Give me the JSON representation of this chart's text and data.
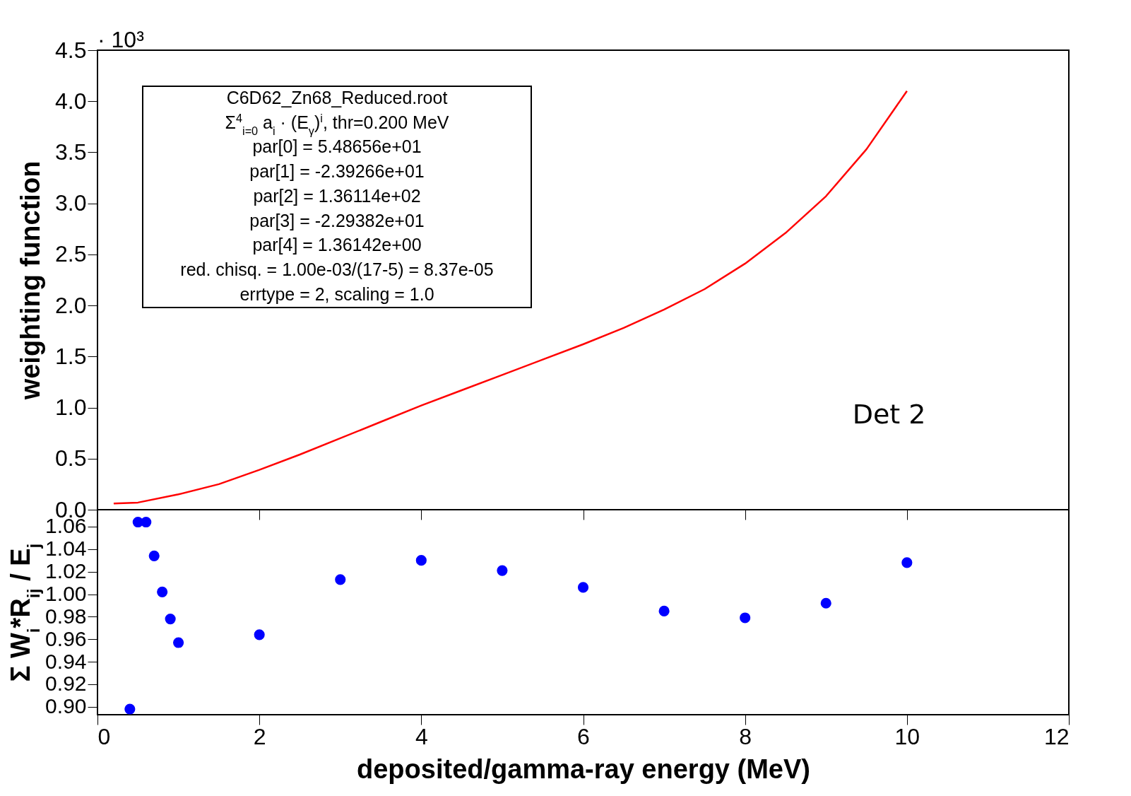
{
  "chart_data": [
    {
      "type": "line",
      "ylabel": "weighting function",
      "xlim": [
        0,
        12
      ],
      "xticks": [
        0,
        2,
        4,
        6,
        8,
        10,
        12
      ],
      "tick_labels": "y",
      "ylim": [
        0,
        4.5
      ],
      "yticks": [
        {
          "value": 0,
          "label": "0.0"
        },
        0.5,
        {
          "value": 1,
          "label": "1.0"
        },
        1.5,
        {
          "value": 2,
          "label": "2.0"
        },
        2.5,
        {
          "value": 3,
          "label": "3.0"
        },
        3.5,
        {
          "value": 4,
          "label": "4.0"
        },
        4.5
      ],
      "x": [
        0.2,
        0.5,
        1,
        1.5,
        2,
        2.5,
        3,
        3.5,
        4,
        4.5,
        5,
        5.5,
        6,
        6.5,
        7,
        7.5,
        8,
        8.5,
        9,
        9.5,
        10
      ],
      "series": [
        {
          "color": "#ff0000",
          "values": [
            0.06,
            0.07,
            0.15,
            0.25,
            0.39,
            0.54,
            0.7,
            0.86,
            1.02,
            1.17,
            1.32,
            1.47,
            1.62,
            1.78,
            1.96,
            2.16,
            2.41,
            2.71,
            3.07,
            3.53,
            4.1
          ]
        }
      ],
      "annotations": [
        "· 10³",
        "C6D62_Zn68_Reduced.root",
        "Σ$^{4}$$_{i=0}$ a$_{i}$ ·  (E$_{γ}$)$^{i}$, thr=0.200 MeV",
        "par[0] =  5.48656e+01",
        "par[1] = -2.39266e+01",
        "par[2] =  1.36114e+02",
        "par[3] = -2.29382e+01",
        "par[4] =  1.36142e+00",
        "red. chisq. = 1.00e-03/(17-5) = 8.37e-05",
        "errtype = 2, scaling = 1.0",
        "Det 2"
      ]
    },
    {
      "type": "scatter",
      "xlabel": "deposited/gamma-ray energy (MeV)",
      "ylabel": "Σ W$_{i}$*R$_{ij}$ / E$_{j}$",
      "xlim": [
        0,
        12
      ],
      "xticks": [
        0,
        2,
        4,
        6,
        8,
        10,
        12
      ],
      "ylim": [
        0.893,
        1.075
      ],
      "yticks": [
        {
          "value": 0.9,
          "label": "0.90"
        },
        0.92,
        0.94,
        0.96,
        0.98,
        {
          "value": 1,
          "label": "1.00"
        },
        1.02,
        1.04,
        1.06
      ],
      "marker": "circle",
      "x": [
        0.4,
        0.5,
        0.6,
        0.7,
        0.8,
        0.9,
        1,
        2,
        3,
        4,
        5,
        6,
        7,
        8,
        9,
        10
      ],
      "series": [
        {
          "color": "#0000ff",
          "values": [
            0.898,
            1.064,
            1.064,
            1.034,
            1.002,
            0.978,
            0.957,
            0.964,
            1.013,
            1.03,
            1.021,
            1.006,
            0.985,
            0.979,
            0.992,
            1.028
          ]
        }
      ]
    }
  ]
}
